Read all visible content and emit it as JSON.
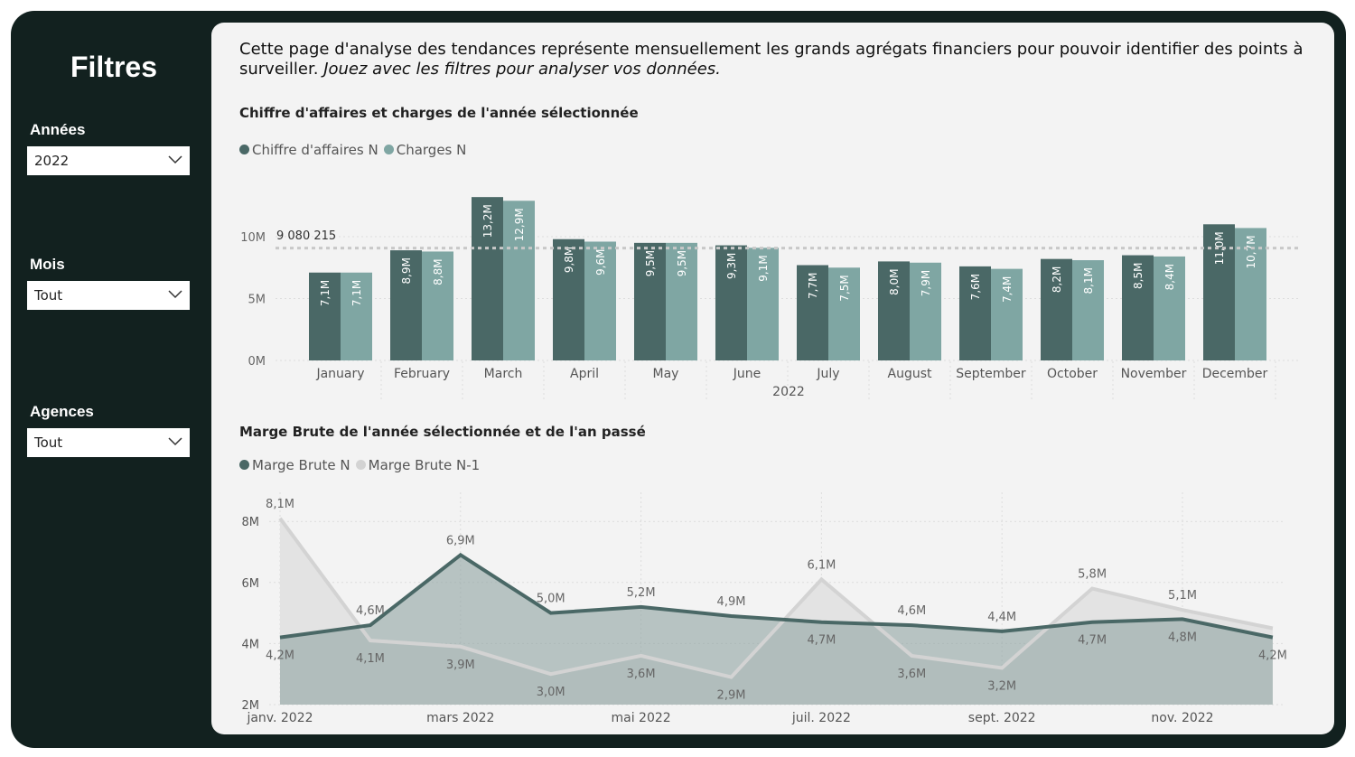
{
  "sidebar": {
    "title": "Filtres",
    "filters": [
      {
        "label": "Années",
        "value": "2022"
      },
      {
        "label": "Mois",
        "value": "Tout"
      },
      {
        "label": "Agences",
        "value": "Tout"
      }
    ]
  },
  "intro": {
    "text": "Cette page d'analyse des tendances représente mensuellement les grands agrégats financiers pour pouvoir identifier des points à surveiller. ",
    "italic": "Jouez avec les filtres pour analyser vos données."
  },
  "colors": {
    "dark": "#4a6866",
    "light": "#7fa6a3",
    "prev": "#d3d3d3",
    "frame": "#12211f"
  },
  "chart_data": [
    {
      "type": "bar",
      "title": "Chiffre d'affaires et charges de l'année sélectionnée",
      "categories": [
        "January",
        "February",
        "March",
        "April",
        "May",
        "June",
        "July",
        "August",
        "September",
        "October",
        "November",
        "December"
      ],
      "xlabel": "2022",
      "yticks": [
        "0M",
        "5M",
        "10M"
      ],
      "ylim": [
        0,
        14
      ],
      "reference_line": {
        "value": 9080215,
        "label": "9 080 215"
      },
      "series": [
        {
          "name": "Chiffre d'affaires N",
          "values": [
            7.1,
            8.9,
            13.2,
            9.8,
            9.5,
            9.3,
            7.7,
            8.0,
            7.6,
            8.2,
            8.5,
            11.0
          ],
          "labels": [
            "7,1M",
            "8,9M",
            "13,2M",
            "9,8M",
            "9,5M",
            "9,3M",
            "7,7M",
            "8,0M",
            "7,6M",
            "8,2M",
            "8,5M",
            "11,0M"
          ]
        },
        {
          "name": "Charges N",
          "values": [
            7.1,
            8.8,
            12.9,
            9.6,
            9.5,
            9.1,
            7.5,
            7.9,
            7.4,
            8.1,
            8.4,
            10.7
          ],
          "labels": [
            "7,1M",
            "8,8M",
            "12,9M",
            "9,6M",
            "9,5M",
            "9,1M",
            "7,5M",
            "7,9M",
            "7,4M",
            "8,1M",
            "8,4M",
            "10,7M"
          ]
        }
      ]
    },
    {
      "type": "area",
      "title": "Marge Brute de l'année sélectionnée et de l'an passé",
      "xticks": [
        "janv. 2022",
        "mars 2022",
        "mai 2022",
        "juil. 2022",
        "sept. 2022",
        "nov. 2022"
      ],
      "yticks": [
        "2M",
        "4M",
        "6M",
        "8M"
      ],
      "ylim": [
        2,
        8.6
      ],
      "series": [
        {
          "name": "Marge Brute N",
          "values": [
            4.2,
            4.6,
            6.9,
            5.0,
            5.2,
            4.9,
            4.7,
            4.6,
            4.4,
            4.7,
            4.8,
            4.2
          ],
          "labels": [
            "4,2M",
            "4,6M",
            "6,9M",
            "5,0M",
            "5,2M",
            "4,9M",
            "4,7M",
            "4,6M",
            "4,4M",
            "4,7M",
            "4,8M",
            "4,2M"
          ]
        },
        {
          "name": "Marge Brute N-1",
          "values": [
            8.1,
            4.1,
            3.9,
            3.0,
            3.6,
            2.9,
            6.1,
            3.6,
            3.2,
            5.8,
            5.1,
            4.5
          ],
          "labels": [
            "8,1M",
            "4,1M",
            "3,9M",
            "3,0M",
            "3,6M",
            "2,9M",
            "6,1M",
            "3,6M",
            "3,2M",
            "5,8M",
            "5,1M",
            null
          ]
        }
      ]
    }
  ]
}
